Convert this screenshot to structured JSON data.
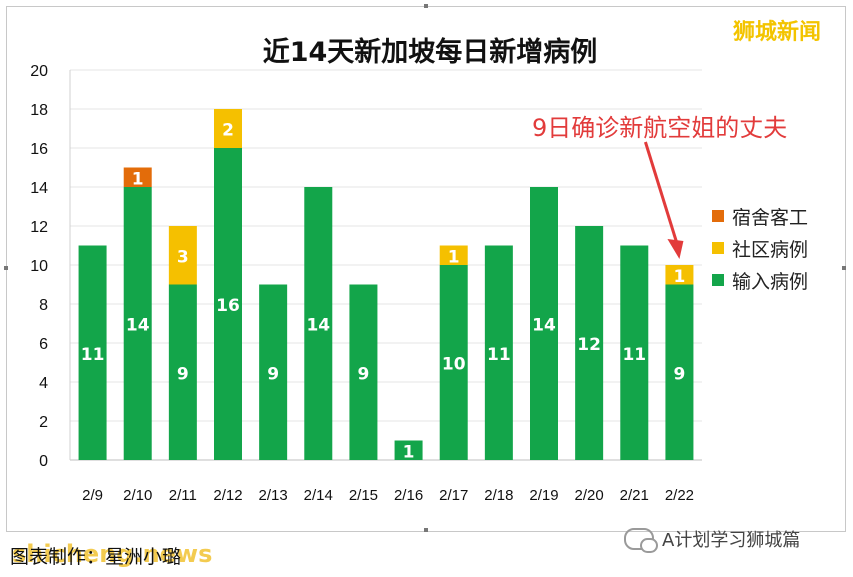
{
  "title": "近14天新加坡每日新增病例",
  "watermark": "狮城新闻",
  "annotation": "9日确诊新航空姐的丈夫",
  "caption": "图表制作：星洲小璐",
  "caption_watermark": "shicheng.news",
  "wechat_label": "A计划学习狮城篇",
  "chart_data": {
    "type": "bar",
    "stacked": true,
    "categories": [
      "2/9",
      "2/10",
      "2/11",
      "2/12",
      "2/13",
      "2/14",
      "2/15",
      "2/16",
      "2/17",
      "2/18",
      "2/19",
      "2/20",
      "2/21",
      "2/22"
    ],
    "series": [
      {
        "name": "输入病例",
        "color": "#13a54a",
        "values": [
          11,
          14,
          9,
          16,
          9,
          14,
          9,
          1,
          10,
          11,
          14,
          12,
          11,
          9
        ]
      },
      {
        "name": "社区病例",
        "color": "#f5c000",
        "values": [
          0,
          0,
          3,
          2,
          0,
          0,
          0,
          0,
          1,
          0,
          0,
          0,
          0,
          1
        ]
      },
      {
        "name": "宿舍客工",
        "color": "#e36c0a",
        "values": [
          0,
          1,
          0,
          0,
          0,
          0,
          0,
          0,
          0,
          0,
          0,
          0,
          0,
          0
        ]
      }
    ],
    "legend_order": [
      "宿舍客工",
      "社区病例",
      "输入病例"
    ],
    "legend_position": "right",
    "ylim": [
      0,
      20
    ],
    "yticks": [
      0,
      2,
      4,
      6,
      8,
      10,
      12,
      14,
      16,
      18,
      20
    ],
    "grid": true,
    "xlabel": "",
    "ylabel": ""
  }
}
